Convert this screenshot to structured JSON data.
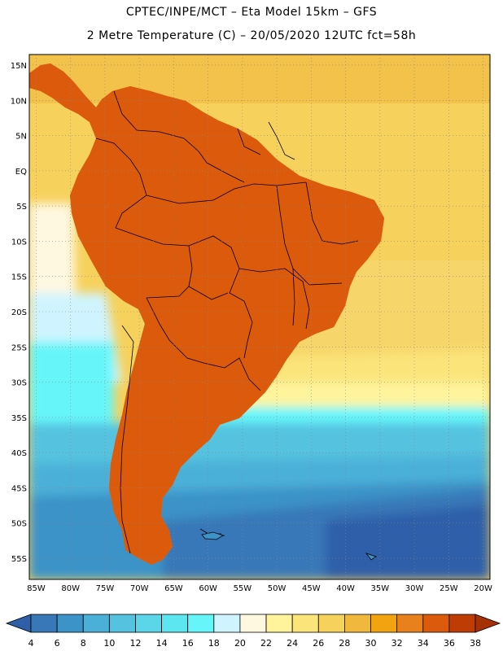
{
  "header": {
    "title_line1": "CPTEC/INPE/MCT –  Eta Model 15km – GFS",
    "title_line2": "2 Metre Temperature (C) – 20/05/2020 12UTC fct=58h"
  },
  "map": {
    "lat_labels": [
      "15N",
      "10N",
      "5N",
      "EQ",
      "5S",
      "10S",
      "15S",
      "20S",
      "25S",
      "30S",
      "35S",
      "40S",
      "45S",
      "50S",
      "55S"
    ],
    "lon_labels": [
      "85W",
      "80W",
      "75W",
      "70W",
      "65W",
      "60W",
      "55W",
      "50W",
      "45W",
      "40W",
      "35W",
      "30W",
      "25W",
      "20W"
    ],
    "lat_values": [
      15,
      10,
      5,
      0,
      -5,
      -10,
      -15,
      -20,
      -25,
      -30,
      -35,
      -40,
      -45,
      -50,
      -55
    ],
    "lon_values": [
      -85,
      -80,
      -75,
      -70,
      -65,
      -60,
      -55,
      -50,
      -45,
      -40,
      -35,
      -30,
      -25,
      -20
    ],
    "lat_range": [
      -58,
      16.5
    ],
    "lon_range": [
      -86,
      -19
    ]
  },
  "colorbar": {
    "labels": [
      "4",
      "6",
      "8",
      "10",
      "12",
      "14",
      "16",
      "18",
      "20",
      "22",
      "24",
      "26",
      "28",
      "30",
      "32",
      "34",
      "36",
      "38"
    ],
    "colors": [
      "#2e5fa8",
      "#3878b8",
      "#3b93c8",
      "#4bb0d8",
      "#55c3e0",
      "#5ad6e8",
      "#5ce6f0",
      "#66f6fa",
      "#cff4ff",
      "#fff8e1",
      "#fff49c",
      "#fbe47a",
      "#f6d15c",
      "#f0b83c",
      "#f2a410",
      "#e8801c",
      "#dc5a0c",
      "#c03c05",
      "#a83005"
    ]
  }
}
